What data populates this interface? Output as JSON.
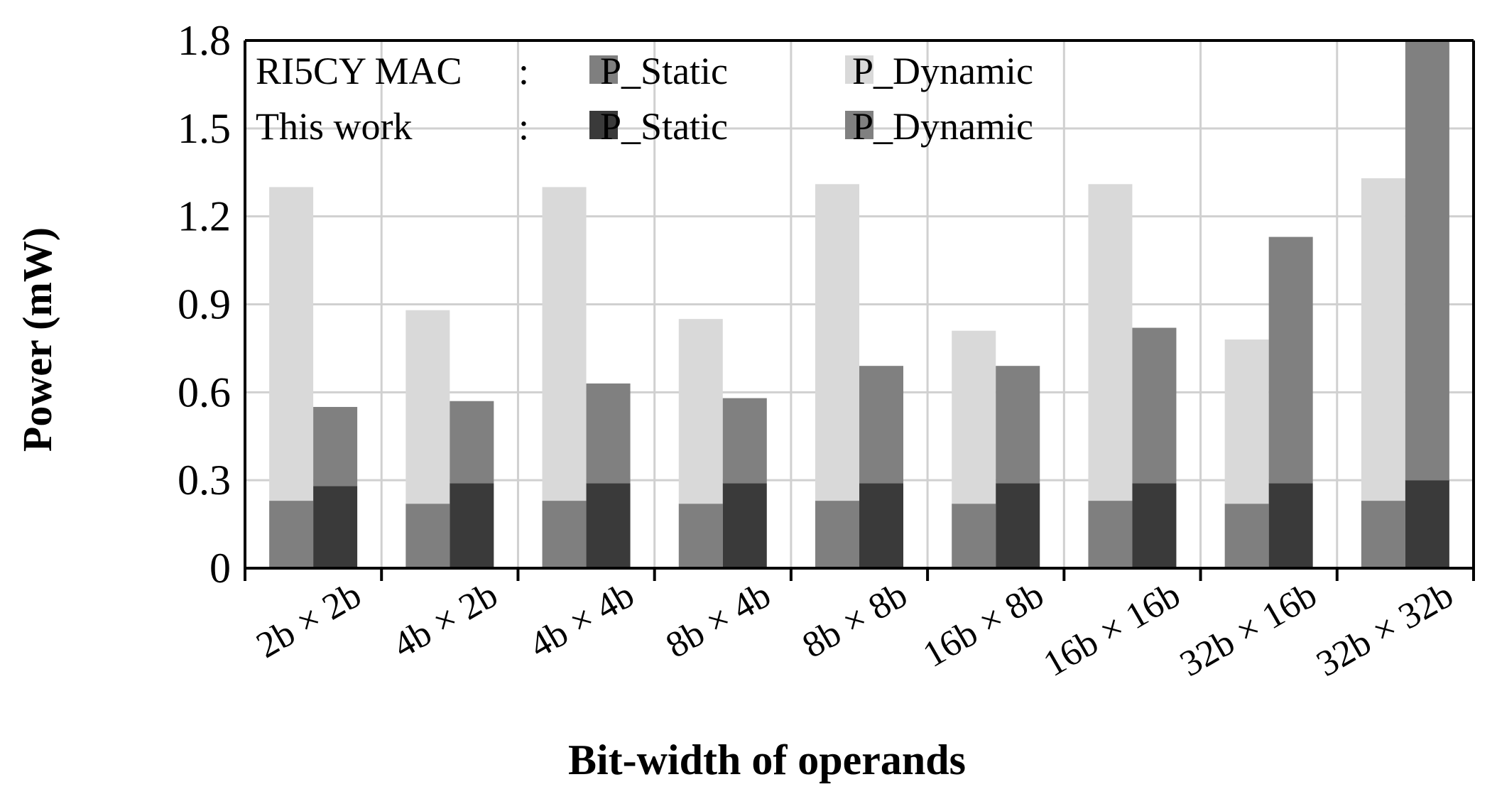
{
  "chart_data": {
    "type": "bar",
    "stacked": true,
    "grouped": true,
    "title": "",
    "xlabel": "Bit-width of operands",
    "ylabel": "Power (mW)",
    "ylim": [
      0,
      1.8
    ],
    "yticks": [
      "0",
      "0.3",
      "0.6",
      "0.9",
      "1.2",
      "1.5",
      "1.8"
    ],
    "grid": true,
    "legend_position": "top-left inside",
    "categories": [
      "2b × 2b",
      "4b × 2b",
      "4b × 4b",
      "8b × 4b",
      "8b × 8b",
      "16b × 8b",
      "16b × 16b",
      "32b × 16b",
      "32b × 32b"
    ],
    "groups": [
      {
        "name": "RI5CY MAC",
        "series": [
          {
            "name": "P_Static",
            "values": [
              0.23,
              0.22,
              0.23,
              0.22,
              0.23,
              0.22,
              0.23,
              0.22,
              0.23
            ]
          },
          {
            "name": "P_Dynamic",
            "values": [
              1.07,
              0.66,
              1.07,
              0.63,
              1.08,
              0.59,
              1.08,
              0.56,
              1.1
            ]
          }
        ]
      },
      {
        "name": "This work",
        "series": [
          {
            "name": "P_Static",
            "values": [
              0.28,
              0.29,
              0.29,
              0.29,
              0.29,
              0.29,
              0.29,
              0.29,
              0.3
            ]
          },
          {
            "name": "P_Dynamic",
            "values": [
              0.27,
              0.28,
              0.34,
              0.29,
              0.4,
              0.4,
              0.53,
              0.84,
              1.5
            ]
          }
        ]
      }
    ],
    "legend": {
      "rows": [
        {
          "group": "RI5CY MAC",
          "sep": ":",
          "static": "P_Static",
          "dynamic": "P_Dynamic"
        },
        {
          "group": "This work",
          "sep": ":",
          "static": "P_Static",
          "dynamic": "P_Dynamic"
        }
      ]
    },
    "colors": {
      "ri5cy_static": "#7f7f7f",
      "ri5cy_dynamic": "#d9d9d9",
      "this_static": "#3a3a3a",
      "this_dynamic": "#808080",
      "grid": "#d0d0d0",
      "axis": "#000000"
    }
  }
}
